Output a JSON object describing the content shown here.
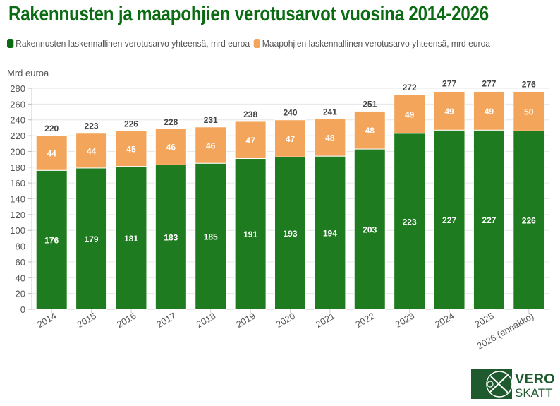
{
  "chart_data": {
    "type": "bar",
    "stacked": true,
    "title": "Rakennusten ja maapohjien verotusarvot vuosina 2014-2026",
    "ylabel": "Mrd euroa",
    "xlabel": "",
    "ylim": [
      0,
      280
    ],
    "yticks": [
      0,
      20,
      40,
      60,
      80,
      100,
      120,
      140,
      160,
      180,
      200,
      220,
      240,
      260,
      280
    ],
    "grid": true,
    "legend": "top",
    "categories": [
      "2014",
      "2015",
      "2016",
      "2017",
      "2018",
      "2019",
      "2020",
      "2021",
      "2022",
      "2023",
      "2024",
      "2025",
      "2026 (ennakko)"
    ],
    "series": [
      {
        "name": "Rakennusten laskennallinen verotusarvo yhteensä, mrd euroa",
        "color": "#1e7b1f",
        "values": [
          176,
          179,
          181,
          183,
          185,
          191,
          193,
          194,
          203,
          223,
          227,
          227,
          226
        ]
      },
      {
        "name": "Maapohjien laskennallinen verotusarvo yhteensä, mrd euroa",
        "color": "#f3a65b",
        "values": [
          44,
          44,
          45,
          46,
          46,
          47,
          47,
          48,
          48,
          49,
          49,
          49,
          50
        ]
      }
    ],
    "totals": [
      220,
      223,
      226,
      228,
      231,
      238,
      240,
      241,
      251,
      272,
      277,
      277,
      276
    ]
  },
  "logo": {
    "text_top": "VERO",
    "text_bottom": "SKATT",
    "color": "#1f5a2e"
  }
}
